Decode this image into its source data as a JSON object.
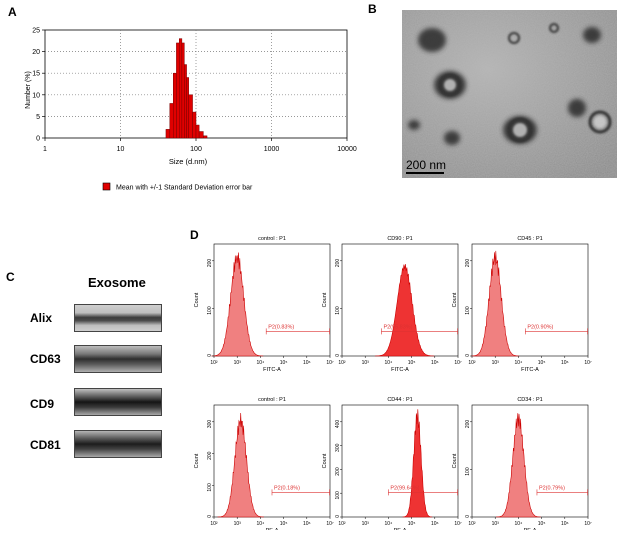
{
  "panels": {
    "a": "A",
    "b": "B",
    "c": "C",
    "d": "D"
  },
  "chart_data": {
    "type": "bar",
    "xscale": "log",
    "x": [
      40,
      45,
      50,
      55,
      60,
      65,
      70,
      75,
      80,
      90,
      100,
      110,
      125
    ],
    "values": [
      2,
      8,
      15,
      22,
      23,
      22,
      17,
      14,
      10,
      6,
      3,
      1.5,
      0.5
    ],
    "xlabel": "Size (d.nm)",
    "ylabel": "Number (%)",
    "xticks": [
      "1",
      "10",
      "100",
      "1000",
      "10000"
    ],
    "yticks": [
      "0",
      "5",
      "10",
      "15",
      "20",
      "25"
    ],
    "ylim": [
      0,
      25
    ],
    "xlim": [
      1,
      10000
    ],
    "legend": "Mean with +/-1 Standard Deviation error bar",
    "color": "#e00000"
  },
  "tem": {
    "scalebar": "200 nm"
  },
  "western": {
    "title": "Exosome",
    "bands": [
      "Alix",
      "CD63",
      "CD9",
      "CD81"
    ]
  },
  "flow": {
    "x_ticks": [
      "10²",
      "10³",
      "10⁴",
      "10⁵",
      "10⁶",
      "10⁷"
    ],
    "ylabel": "Count",
    "panels": [
      {
        "title": "control : P1",
        "gate": "P2(0.83%)",
        "xlabel": "FITC-A",
        "yticks": [
          "0",
          "100",
          "200"
        ]
      },
      {
        "title": "CD90 : P1",
        "gate": "P2(95.83%)",
        "xlabel": "FITC-A",
        "yticks": [
          "0",
          "100",
          "200"
        ]
      },
      {
        "title": "CD45 : P1",
        "gate": "P2(0.90%)",
        "xlabel": "FITC-A",
        "yticks": [
          "0",
          "100",
          "200"
        ]
      },
      {
        "title": "control : P1",
        "gate": "P2(0.18%)",
        "xlabel": "PE-A",
        "yticks": [
          "0",
          "100",
          "200",
          "300"
        ]
      },
      {
        "title": "CD44 : P1",
        "gate": "P2(99.64%)",
        "xlabel": "PE-A",
        "yticks": [
          "0",
          "100",
          "200",
          "300",
          "400"
        ]
      },
      {
        "title": "CD34 : P1",
        "gate": "P2(0.79%)",
        "xlabel": "PE-A",
        "yticks": [
          "0",
          "100",
          "200"
        ]
      }
    ]
  }
}
